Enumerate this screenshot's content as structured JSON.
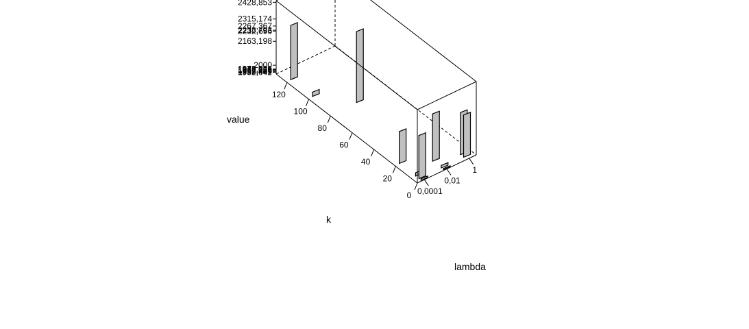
{
  "chart_data": {
    "type": "bar3d",
    "x_axis": {
      "label": "k",
      "ticks": [
        "0",
        "20",
        "40",
        "60",
        "80",
        "100",
        "120"
      ]
    },
    "y_axis": {
      "label": "lambda",
      "ticks": [
        "0,0001",
        "0,01",
        "1"
      ]
    },
    "z_axis": {
      "label": "value",
      "ticks": [
        "1952,042",
        "1955,409",
        "1962,276",
        "1967,729",
        "1970,065",
        "1973,921",
        "2000",
        "2163,198",
        "2232,696",
        "2238,793",
        "2267,367",
        "2315,174",
        "2428,853"
      ]
    },
    "bars": [
      {
        "k": 120,
        "lambda": "0,0001",
        "value": 2315.174
      },
      {
        "k": 100,
        "lambda": "0,0001",
        "value": 1973.921
      },
      {
        "k": 80,
        "lambda": "0,01",
        "value": 2428.853
      },
      {
        "k": 20,
        "lambda": "0,0001",
        "value": 2163.198
      },
      {
        "k": 5,
        "lambda": "0,0001",
        "value": 1967.729
      },
      {
        "k": 2,
        "lambda": "0,0001",
        "value": 2238.793
      },
      {
        "k": 0,
        "lambda": "0,0001",
        "value": 1955.409
      },
      {
        "k": 10,
        "lambda": "0,01",
        "value": 2267.367
      },
      {
        "k": 2,
        "lambda": "0,01",
        "value": 1962.276
      },
      {
        "k": 0,
        "lambda": "0,01",
        "value": 1952.042
      },
      {
        "k": 5,
        "lambda": "1",
        "value": 2232.696
      },
      {
        "k": 2,
        "lambda": "1",
        "value": 2232.696
      }
    ]
  }
}
